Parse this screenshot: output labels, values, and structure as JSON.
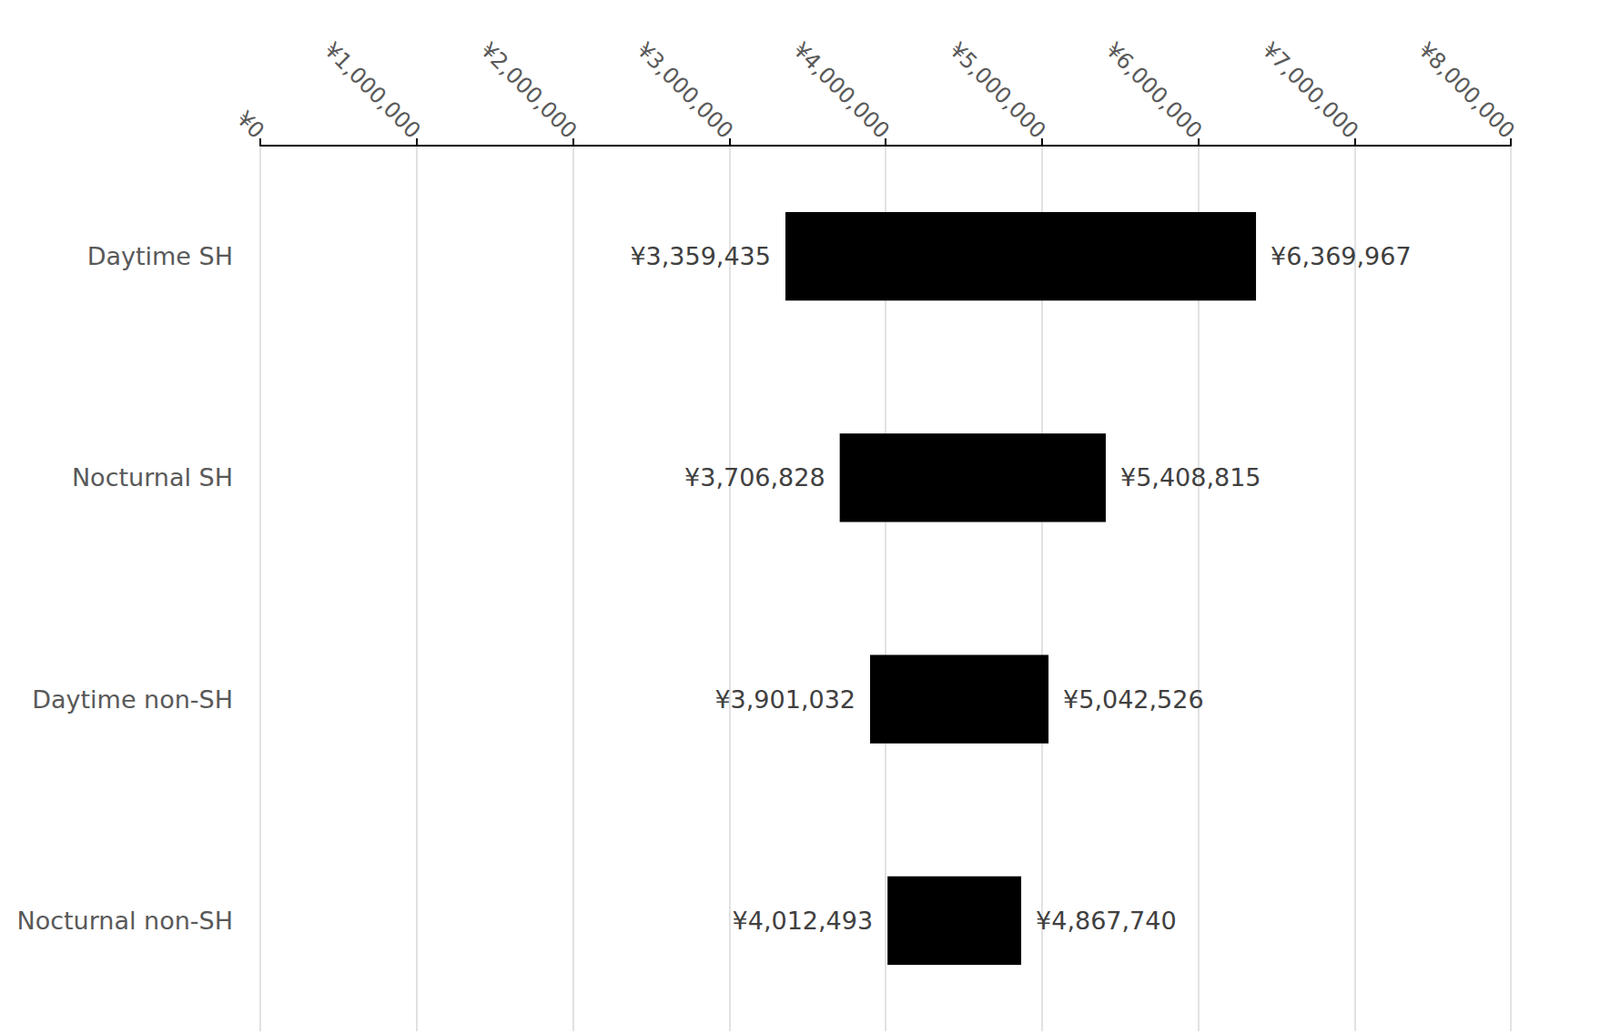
{
  "chart_data": {
    "type": "range_bar",
    "orientation": "horizontal",
    "categories": [
      "Daytime SH",
      "Nocturnal SH",
      "Daytime non-SH",
      "Nocturnal non-SH"
    ],
    "values": [
      [
        3359435,
        6369967
      ],
      [
        3706828,
        5408815
      ],
      [
        3901032,
        5042526
      ],
      [
        4012493,
        4867740
      ]
    ],
    "value_labels": [
      [
        "¥3,359,435",
        "¥6,369,967"
      ],
      [
        "¥3,706,828",
        "¥5,408,815"
      ],
      [
        "¥3,901,032",
        "¥5,042,526"
      ],
      [
        "¥4,012,493",
        "¥4,867,740"
      ]
    ],
    "color": "#000000",
    "xlim": [
      0,
      8000000
    ],
    "xticks": [
      {
        "value": 0,
        "label": "¥0"
      },
      {
        "value": 1000000,
        "label": "¥1,000,000"
      },
      {
        "value": 2000000,
        "label": "¥2,000,000"
      },
      {
        "value": 3000000,
        "label": "¥3,000,000"
      },
      {
        "value": 4000000,
        "label": "¥4,000,000"
      },
      {
        "value": 5000000,
        "label": "¥5,000,000"
      },
      {
        "value": 6000000,
        "label": "¥6,000,000"
      },
      {
        "value": 7000000,
        "label": "¥7,000,000"
      },
      {
        "value": 8000000,
        "label": "¥8,000,000"
      }
    ],
    "grid": true,
    "data_labels": true
  }
}
